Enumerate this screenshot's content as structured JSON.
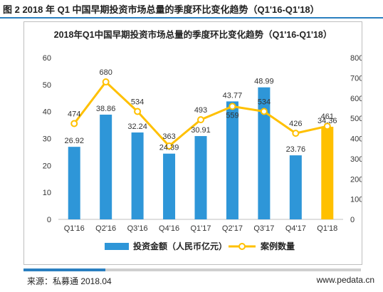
{
  "figure_title": "图 2 2018 年 Q1 中国早期投资市场总量的季度环比变化趋势（Q1'16-Q1'18）",
  "footer": {
    "source": "来源：私募通 2018.04",
    "website": "www.pedata.cn"
  },
  "chart_data": {
    "type": "bar+line",
    "title": "2018年Q1中国早期投资市场总量的季度环比变化趋势（Q1'16-Q1'18）",
    "categories": [
      "Q1'16",
      "Q2'16",
      "Q3'16",
      "Q4'16",
      "Q1'17",
      "Q2'17",
      "Q3'17",
      "Q4'17",
      "Q1'18"
    ],
    "series": [
      {
        "name": "投资金额（人民币亿元）",
        "kind": "bar",
        "axis": "left",
        "color": "#2e96d8",
        "highlight_color": "#ffc000",
        "highlight_index": 8,
        "values": [
          26.92,
          38.86,
          32.24,
          24.39,
          30.91,
          43.77,
          48.99,
          23.76,
          34.36
        ],
        "labels": [
          "26.92",
          "38.86",
          "32.24",
          "24.39",
          "30.91",
          "43.77",
          "48.99",
          "23.76",
          "34.36"
        ]
      },
      {
        "name": "案例数量",
        "kind": "line",
        "axis": "right",
        "color": "#ffc000",
        "marker_fill": "#ffffff",
        "values": [
          474,
          680,
          534,
          363,
          493,
          559,
          534,
          426,
          461
        ],
        "labels": [
          "474",
          "680",
          "534",
          "363",
          "493",
          "559",
          "534",
          "426",
          "461"
        ]
      }
    ],
    "y_left": {
      "min": 0,
      "max": 60,
      "ticks": [
        "0",
        "10",
        "20",
        "30",
        "40",
        "50",
        "60"
      ]
    },
    "y_right": {
      "min": 0,
      "max": 800,
      "ticks": [
        "0",
        "100",
        "200",
        "300",
        "400",
        "500",
        "600",
        "700",
        "800"
      ]
    },
    "grid": false,
    "legend_position": "bottom"
  }
}
